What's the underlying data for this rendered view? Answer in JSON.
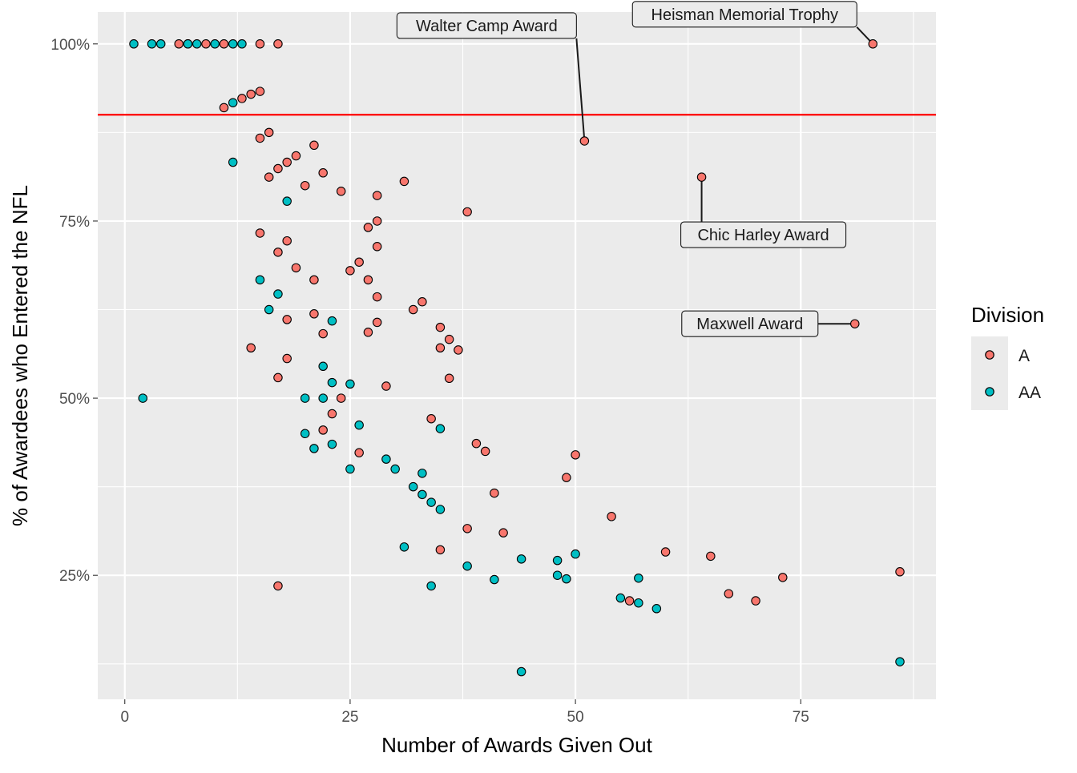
{
  "chart_data": {
    "type": "scatter",
    "title": "",
    "xlabel": "Number of Awards Given Out",
    "ylabel": "% of Awardees who Entered the NFL",
    "xlim": [
      -3,
      90
    ],
    "ylim": [
      7.5,
      104.5
    ],
    "x_ticks": [
      0,
      25,
      50,
      75
    ],
    "x_tick_labels": [
      "0",
      "25",
      "50",
      "75"
    ],
    "y_ticks": [
      25,
      50,
      75,
      100
    ],
    "y_tick_labels": [
      "25%",
      "50%",
      "75%",
      "100%"
    ],
    "grid": true,
    "reference_line": {
      "y": 90,
      "color": "#ff0000"
    },
    "legend": {
      "title": "Division",
      "position": "right",
      "entries": [
        {
          "label": "A",
          "color": "#F8766D"
        },
        {
          "label": "AA",
          "color": "#00BFC4"
        }
      ]
    },
    "series": [
      {
        "name": "A",
        "color": "#F8766D",
        "points": [
          [
            6,
            100
          ],
          [
            7,
            100
          ],
          [
            9,
            100
          ],
          [
            11,
            100
          ],
          [
            15,
            100
          ],
          [
            17,
            100
          ],
          [
            11,
            91
          ],
          [
            13,
            92.3
          ],
          [
            14,
            92.9
          ],
          [
            15,
            93.3
          ],
          [
            15,
            86.7
          ],
          [
            16,
            87.5
          ],
          [
            21,
            85.7
          ],
          [
            19,
            84.2
          ],
          [
            18,
            83.3
          ],
          [
            17,
            82.4
          ],
          [
            22,
            81.8
          ],
          [
            16,
            81.2
          ],
          [
            31,
            80.6
          ],
          [
            20,
            80
          ],
          [
            24,
            79.2
          ],
          [
            28,
            78.6
          ],
          [
            38,
            76.3
          ],
          [
            28,
            75
          ],
          [
            27,
            74.1
          ],
          [
            15,
            73.3
          ],
          [
            18,
            72.2
          ],
          [
            28,
            71.4
          ],
          [
            17,
            70.6
          ],
          [
            26,
            69.2
          ],
          [
            19,
            68.4
          ],
          [
            25,
            68
          ],
          [
            21,
            66.7
          ],
          [
            27,
            66.7
          ],
          [
            28,
            64.3
          ],
          [
            33,
            63.6
          ],
          [
            32,
            62.5
          ],
          [
            21,
            61.9
          ],
          [
            18,
            61.1
          ],
          [
            28,
            60.7
          ],
          [
            35,
            60
          ],
          [
            22,
            59.1
          ],
          [
            27,
            59.3
          ],
          [
            36,
            58.3
          ],
          [
            14,
            57.1
          ],
          [
            35,
            57.1
          ],
          [
            37,
            56.8
          ],
          [
            18,
            55.6
          ],
          [
            17,
            52.9
          ],
          [
            36,
            52.8
          ],
          [
            29,
            51.7
          ],
          [
            24,
            50
          ],
          [
            23,
            47.8
          ],
          [
            34,
            47.1
          ],
          [
            22,
            45.5
          ],
          [
            39,
            43.6
          ],
          [
            40,
            42.5
          ],
          [
            26,
            42.3
          ],
          [
            50,
            42
          ],
          [
            49,
            38.8
          ],
          [
            41,
            36.6
          ],
          [
            54,
            33.3
          ],
          [
            38,
            31.6
          ],
          [
            42,
            31
          ],
          [
            35,
            28.6
          ],
          [
            60,
            28.3
          ],
          [
            65,
            27.7
          ],
          [
            73,
            24.7
          ],
          [
            86,
            25.5
          ],
          [
            17,
            23.5
          ],
          [
            67,
            22.4
          ],
          [
            56,
            21.4
          ],
          [
            70,
            21.4
          ],
          [
            51,
            86.3
          ],
          [
            64,
            81.2
          ],
          [
            81,
            60.5
          ],
          [
            83,
            100
          ]
        ]
      },
      {
        "name": "AA",
        "color": "#00BFC4",
        "points": [
          [
            1,
            100
          ],
          [
            3,
            100
          ],
          [
            4,
            100
          ],
          [
            7,
            100
          ],
          [
            8,
            100
          ],
          [
            10,
            100
          ],
          [
            12,
            100
          ],
          [
            13,
            100
          ],
          [
            12,
            91.7
          ],
          [
            12,
            83.3
          ],
          [
            18,
            77.8
          ],
          [
            15,
            66.7
          ],
          [
            17,
            64.7
          ],
          [
            16,
            62.5
          ],
          [
            23,
            60.9
          ],
          [
            22,
            54.5
          ],
          [
            23,
            52.2
          ],
          [
            25,
            52
          ],
          [
            2,
            50
          ],
          [
            20,
            50
          ],
          [
            22,
            50
          ],
          [
            26,
            46.2
          ],
          [
            35,
            45.7
          ],
          [
            20,
            45
          ],
          [
            23,
            43.5
          ],
          [
            21,
            42.9
          ],
          [
            29,
            41.4
          ],
          [
            30,
            40
          ],
          [
            25,
            40
          ],
          [
            33,
            39.4
          ],
          [
            32,
            37.5
          ],
          [
            33,
            36.4
          ],
          [
            34,
            35.3
          ],
          [
            35,
            34.3
          ],
          [
            31,
            29
          ],
          [
            44,
            27.3
          ],
          [
            48,
            27.1
          ],
          [
            50,
            28
          ],
          [
            38,
            26.3
          ],
          [
            48,
            25
          ],
          [
            49,
            24.5
          ],
          [
            41,
            24.4
          ],
          [
            57,
            24.6
          ],
          [
            34,
            23.5
          ],
          [
            55,
            21.8
          ],
          [
            57,
            21.1
          ],
          [
            59,
            20.3
          ],
          [
            44,
            11.4
          ],
          [
            86,
            12.8
          ]
        ]
      }
    ],
    "annotations": [
      {
        "text": "Heisman Memorial Trophy",
        "point": [
          83,
          100
        ]
      },
      {
        "text": "Walter Camp Award",
        "point": [
          51,
          86.3
        ]
      },
      {
        "text": "Chic Harley Award",
        "point": [
          64,
          81.2
        ]
      },
      {
        "text": "Maxwell Award",
        "point": [
          81,
          60.5
        ]
      }
    ]
  }
}
